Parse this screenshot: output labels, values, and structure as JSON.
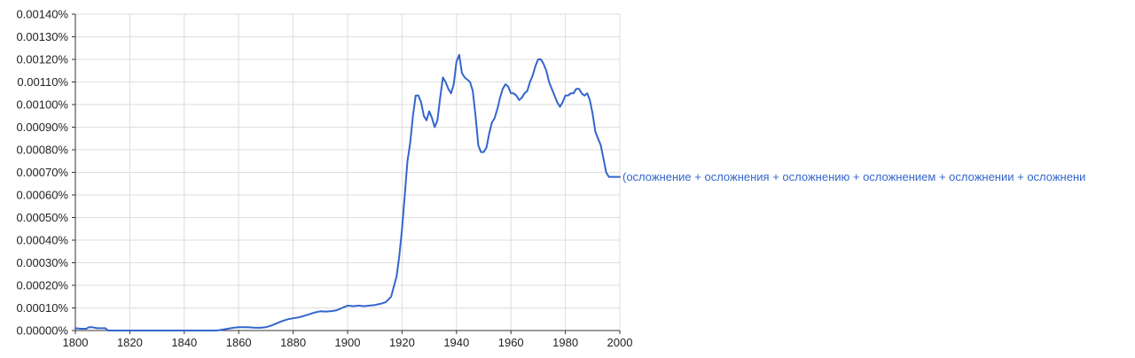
{
  "chart_data": {
    "type": "line",
    "title": "",
    "xlabel": "",
    "ylabel": "",
    "xlim": [
      1800,
      2000
    ],
    "ylim": [
      0,
      0.0014
    ],
    "x_ticks": [
      1800,
      1820,
      1840,
      1860,
      1880,
      1900,
      1920,
      1940,
      1960,
      1980,
      2000
    ],
    "x_tick_labels": [
      "1800",
      "1820",
      "1840",
      "1860",
      "1880",
      "1900",
      "1920",
      "1940",
      "1960",
      "1980",
      "2000"
    ],
    "y_ticks": [
      0,
      0.0001,
      0.0002,
      0.0003,
      0.0004,
      0.0005,
      0.0006,
      0.0007,
      0.0008,
      0.0009,
      0.001,
      0.0011,
      0.0012,
      0.0013,
      0.0014
    ],
    "y_tick_labels": [
      "0.00000%",
      "0.00010%",
      "0.00020%",
      "0.00030%",
      "0.00040%",
      "0.00050%",
      "0.00060%",
      "0.00070%",
      "0.00080%",
      "0.00090%",
      "0.00100%",
      "0.00110%",
      "0.00120%",
      "0.00130%",
      "0.00140%"
    ],
    "grid": true,
    "colors": {
      "series": "#3366cc",
      "grid": "#dddddd",
      "axis": "#333333"
    },
    "series": [
      {
        "name": "(осложнение + осложнения + осложнению + осложнением + осложнении + осложнени",
        "x": [
          1800,
          1802,
          1804,
          1805,
          1806,
          1808,
          1810,
          1811,
          1812,
          1815,
          1820,
          1830,
          1840,
          1850,
          1852,
          1854,
          1856,
          1858,
          1860,
          1862,
          1864,
          1866,
          1868,
          1870,
          1872,
          1874,
          1876,
          1878,
          1880,
          1882,
          1884,
          1886,
          1888,
          1890,
          1892,
          1894,
          1896,
          1898,
          1900,
          1902,
          1904,
          1906,
          1908,
          1910,
          1912,
          1914,
          1916,
          1918,
          1919,
          1920,
          1921,
          1922,
          1923,
          1924,
          1925,
          1926,
          1927,
          1928,
          1929,
          1930,
          1931,
          1932,
          1933,
          1934,
          1935,
          1936,
          1937,
          1938,
          1939,
          1940,
          1941,
          1942,
          1943,
          1944,
          1945,
          1946,
          1947,
          1948,
          1949,
          1950,
          1951,
          1952,
          1953,
          1954,
          1955,
          1956,
          1957,
          1958,
          1959,
          1960,
          1961,
          1962,
          1963,
          1964,
          1965,
          1966,
          1967,
          1968,
          1969,
          1970,
          1971,
          1972,
          1973,
          1974,
          1975,
          1976,
          1977,
          1978,
          1979,
          1980,
          1981,
          1982,
          1983,
          1984,
          1985,
          1986,
          1987,
          1988,
          1989,
          1990,
          1991,
          1992,
          1993,
          1994,
          1995,
          1996,
          1997,
          1998,
          1999,
          2000
        ],
        "y": [
          1e-05,
          8e-06,
          8e-06,
          1.5e-05,
          1.5e-05,
          1e-05,
          1e-05,
          1e-05,
          0,
          0,
          0,
          0,
          0,
          0,
          0,
          4e-06,
          8e-06,
          1.2e-05,
          1.5e-05,
          1.5e-05,
          1.4e-05,
          1.2e-05,
          1.2e-05,
          1.5e-05,
          2.2e-05,
          3.2e-05,
          4.2e-05,
          5e-05,
          5.4e-05,
          5.8e-05,
          6.5e-05,
          7.2e-05,
          8e-05,
          8.5e-05,
          8.4e-05,
          8.6e-05,
          9e-05,
          0.0001,
          0.00011,
          0.000108,
          0.00011,
          0.000108,
          0.00011,
          0.000113,
          0.000118,
          0.000125,
          0.00015,
          0.00024,
          0.00033,
          0.00045,
          0.0006,
          0.00075,
          0.00083,
          0.00095,
          0.00104,
          0.00104,
          0.00101,
          0.00095,
          0.00093,
          0.00097,
          0.00094,
          0.0009,
          0.00093,
          0.00103,
          0.00112,
          0.0011,
          0.00107,
          0.00105,
          0.00109,
          0.00119,
          0.00122,
          0.00114,
          0.00112,
          0.00111,
          0.0011,
          0.00106,
          0.00095,
          0.00082,
          0.00079,
          0.00079,
          0.00081,
          0.00087,
          0.00092,
          0.00094,
          0.00098,
          0.00103,
          0.00107,
          0.00109,
          0.00108,
          0.00105,
          0.00105,
          0.00104,
          0.00102,
          0.00103,
          0.00105,
          0.00106,
          0.0011,
          0.00113,
          0.00117,
          0.0012,
          0.0012,
          0.00118,
          0.00115,
          0.0011,
          0.00107,
          0.00104,
          0.00101,
          0.00099,
          0.00101,
          0.00104,
          0.00104,
          0.00105,
          0.00105,
          0.00107,
          0.00107,
          0.00105,
          0.00104,
          0.00105,
          0.00102,
          0.00096,
          0.00088,
          0.00085,
          0.00082,
          0.00076,
          0.0007,
          0.00068,
          0.00068,
          0.00068,
          0.00068,
          0.00068
        ]
      }
    ]
  }
}
